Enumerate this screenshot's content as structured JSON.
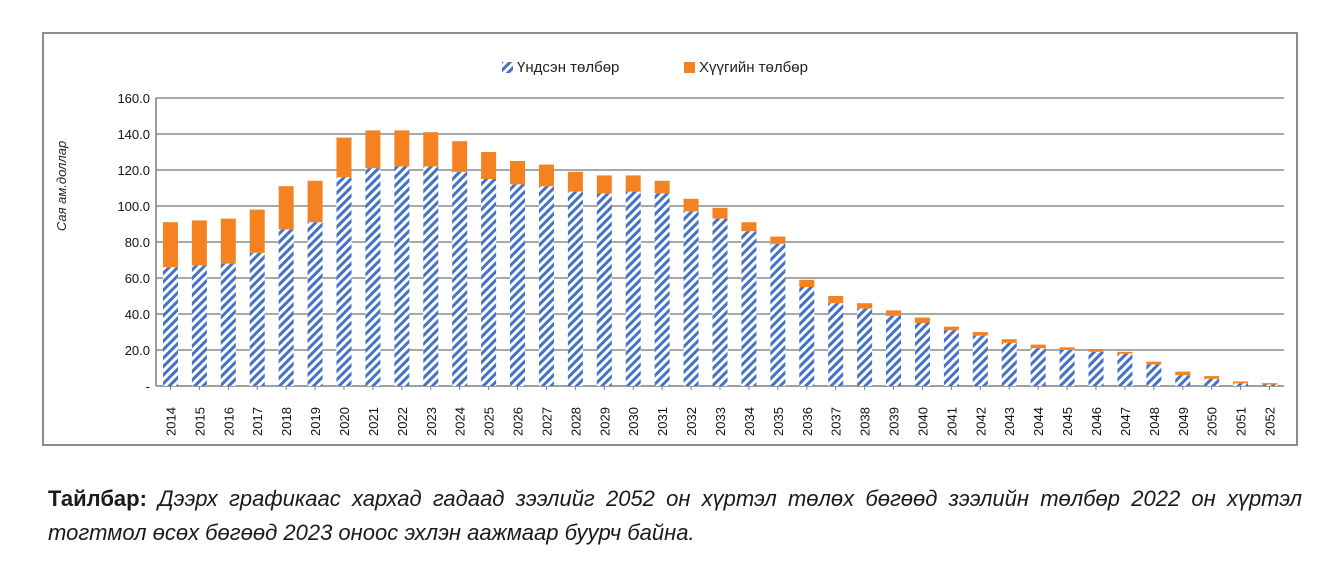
{
  "chart_data": {
    "type": "bar",
    "stacked": true,
    "ylabel": "Сая ам.доллар",
    "ylim": [
      0,
      160
    ],
    "yticks": [
      0,
      20,
      40,
      60,
      80,
      100,
      120,
      140,
      160
    ],
    "ytick_labels": [
      "-",
      "20.0",
      "40.0",
      "60.0",
      "80.0",
      "100.0",
      "120.0",
      "140.0",
      "160.0"
    ],
    "grid": true,
    "legend_position": "top-center",
    "categories": [
      "2014",
      "2015",
      "2016",
      "2017",
      "2018",
      "2019",
      "2020",
      "2021",
      "2022",
      "2023",
      "2024",
      "2025",
      "2026",
      "2027",
      "2028",
      "2029",
      "2030",
      "2031",
      "2032",
      "2033",
      "2034",
      "2035",
      "2036",
      "2037",
      "2038",
      "2039",
      "2040",
      "2041",
      "2042",
      "2043",
      "2044",
      "2045",
      "2046",
      "2047",
      "2048",
      "2049",
      "2050",
      "2051",
      "2052"
    ],
    "series": [
      {
        "name": "Үндсэн төлбөр",
        "color": "#4472c4",
        "pattern": "diagonal-stripes",
        "values": [
          66,
          67,
          68,
          74,
          87,
          91,
          116,
          121,
          122,
          122,
          119,
          115,
          112,
          111,
          108,
          107,
          108,
          107,
          97,
          93,
          86,
          79,
          55,
          46,
          43,
          39,
          35,
          31,
          28,
          24,
          21,
          20,
          19,
          18,
          12,
          6,
          4,
          1.5,
          0.8
        ]
      },
      {
        "name": "Хүүгийн төлбөр",
        "color": "#f58220",
        "pattern": "solid",
        "values": [
          25,
          25,
          25,
          24,
          24,
          23,
          22,
          21,
          20,
          19,
          17,
          15,
          13,
          12,
          11,
          10,
          9,
          7,
          7,
          6,
          5,
          4,
          4,
          4,
          3,
          3,
          3,
          2,
          2,
          2,
          2,
          1.5,
          1.5,
          1,
          1.5,
          2,
          1.5,
          1,
          0.8
        ]
      }
    ]
  },
  "note": {
    "label": "Тайлбар:",
    "text": " Дээрх графикаас хархад гадаад зээлийг 2052 он хүртэл төлөх бөгөөд зээлийн төлбөр 2022 он хүртэл тогтмол өсөх бөгөөд 2023 оноос эхлэн аажмаар буурч байна."
  }
}
